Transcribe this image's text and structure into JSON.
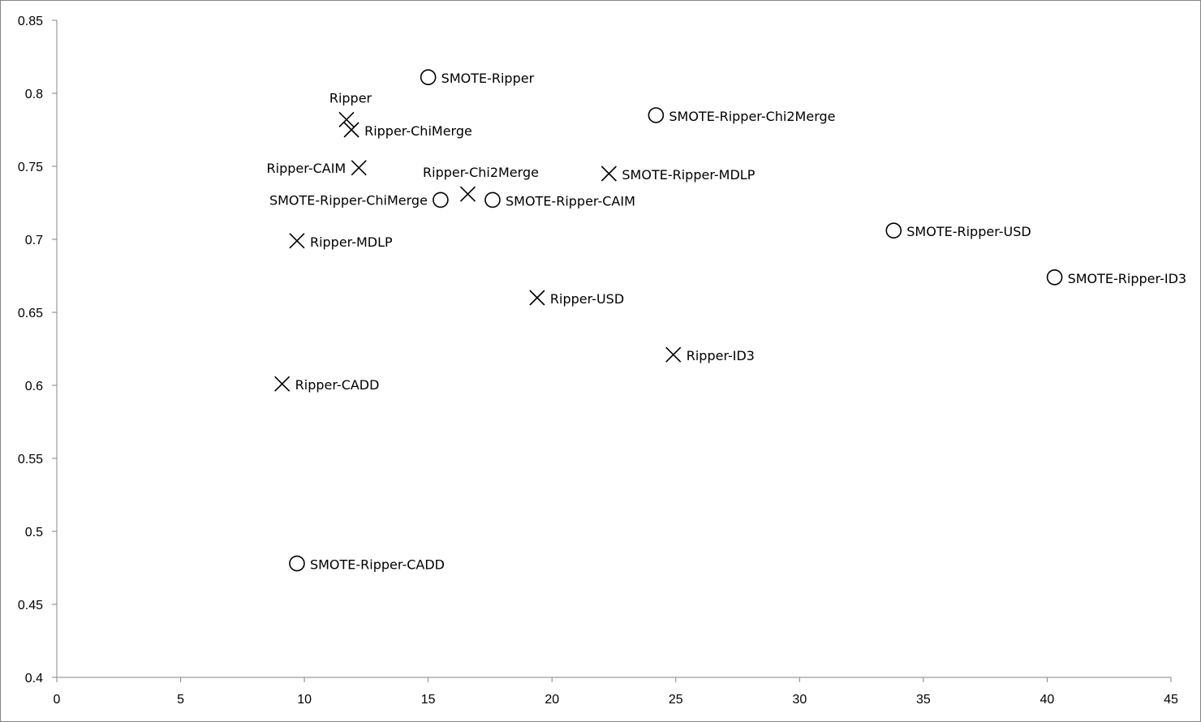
{
  "chart_data": {
    "type": "scatter",
    "title": "",
    "xlabel": "",
    "ylabel": "",
    "xlim": [
      0,
      45
    ],
    "ylim": [
      0.4,
      0.85
    ],
    "x_ticks": [
      0,
      5,
      10,
      15,
      20,
      25,
      30,
      35,
      40,
      45
    ],
    "x_tick_labels": [
      "0",
      "5",
      "10",
      "15",
      "20",
      "25",
      "30",
      "35",
      "40",
      "45"
    ],
    "y_ticks": [
      0.4,
      0.45,
      0.5,
      0.55,
      0.6,
      0.65,
      0.7,
      0.75,
      0.8,
      0.85
    ],
    "y_tick_labels": [
      "0.4",
      "0.45",
      "0.5",
      "0.55",
      "0.6",
      "0.65",
      "0.7",
      "0.75",
      "0.8",
      "0.85"
    ],
    "grid": false,
    "legend": "none",
    "series": [
      {
        "marker": "x",
        "points": [
          {
            "label": "Ripper",
            "x": 11.7,
            "y": 0.782,
            "label_pos": "above"
          },
          {
            "label": "Ripper-ChiMerge",
            "x": 11.9,
            "y": 0.775,
            "label_pos": "right"
          },
          {
            "label": "Ripper-CAIM",
            "x": 12.2,
            "y": 0.749,
            "label_pos": "left"
          },
          {
            "label": "Ripper-Chi2Merge",
            "x": 16.6,
            "y": 0.731,
            "label_pos": "above"
          },
          {
            "label": "SMOTE-Ripper-MDLP",
            "x": 22.3,
            "y": 0.745,
            "label_pos": "right"
          },
          {
            "label": "Ripper-MDLP",
            "x": 9.7,
            "y": 0.699,
            "label_pos": "right"
          },
          {
            "label": "Ripper-USD",
            "x": 19.4,
            "y": 0.66,
            "label_pos": "right"
          },
          {
            "label": "Ripper-ID3",
            "x": 24.9,
            "y": 0.621,
            "label_pos": "right"
          },
          {
            "label": "Ripper-CADD",
            "x": 9.1,
            "y": 0.601,
            "label_pos": "right"
          }
        ]
      },
      {
        "marker": "o",
        "points": [
          {
            "label": "SMOTE-Ripper",
            "x": 15.0,
            "y": 0.811,
            "label_pos": "right"
          },
          {
            "label": "SMOTE-Ripper-Chi2Merge",
            "x": 24.2,
            "y": 0.785,
            "label_pos": "right"
          },
          {
            "label": "SMOTE-Ripper-ChiMerge",
            "x": 15.5,
            "y": 0.727,
            "label_pos": "left"
          },
          {
            "label": "SMOTE-Ripper-CAIM",
            "x": 17.6,
            "y": 0.727,
            "label_pos": "right"
          },
          {
            "label": "SMOTE-Ripper-USD",
            "x": 33.8,
            "y": 0.706,
            "label_pos": "right"
          },
          {
            "label": "SMOTE-Ripper-ID3",
            "x": 40.3,
            "y": 0.674,
            "label_pos": "right"
          },
          {
            "label": "SMOTE-Ripper-CADD",
            "x": 9.7,
            "y": 0.478,
            "label_pos": "right"
          }
        ]
      }
    ],
    "colors": {
      "marker": "#000000",
      "axis": "#868686",
      "frame": "#868686"
    }
  }
}
